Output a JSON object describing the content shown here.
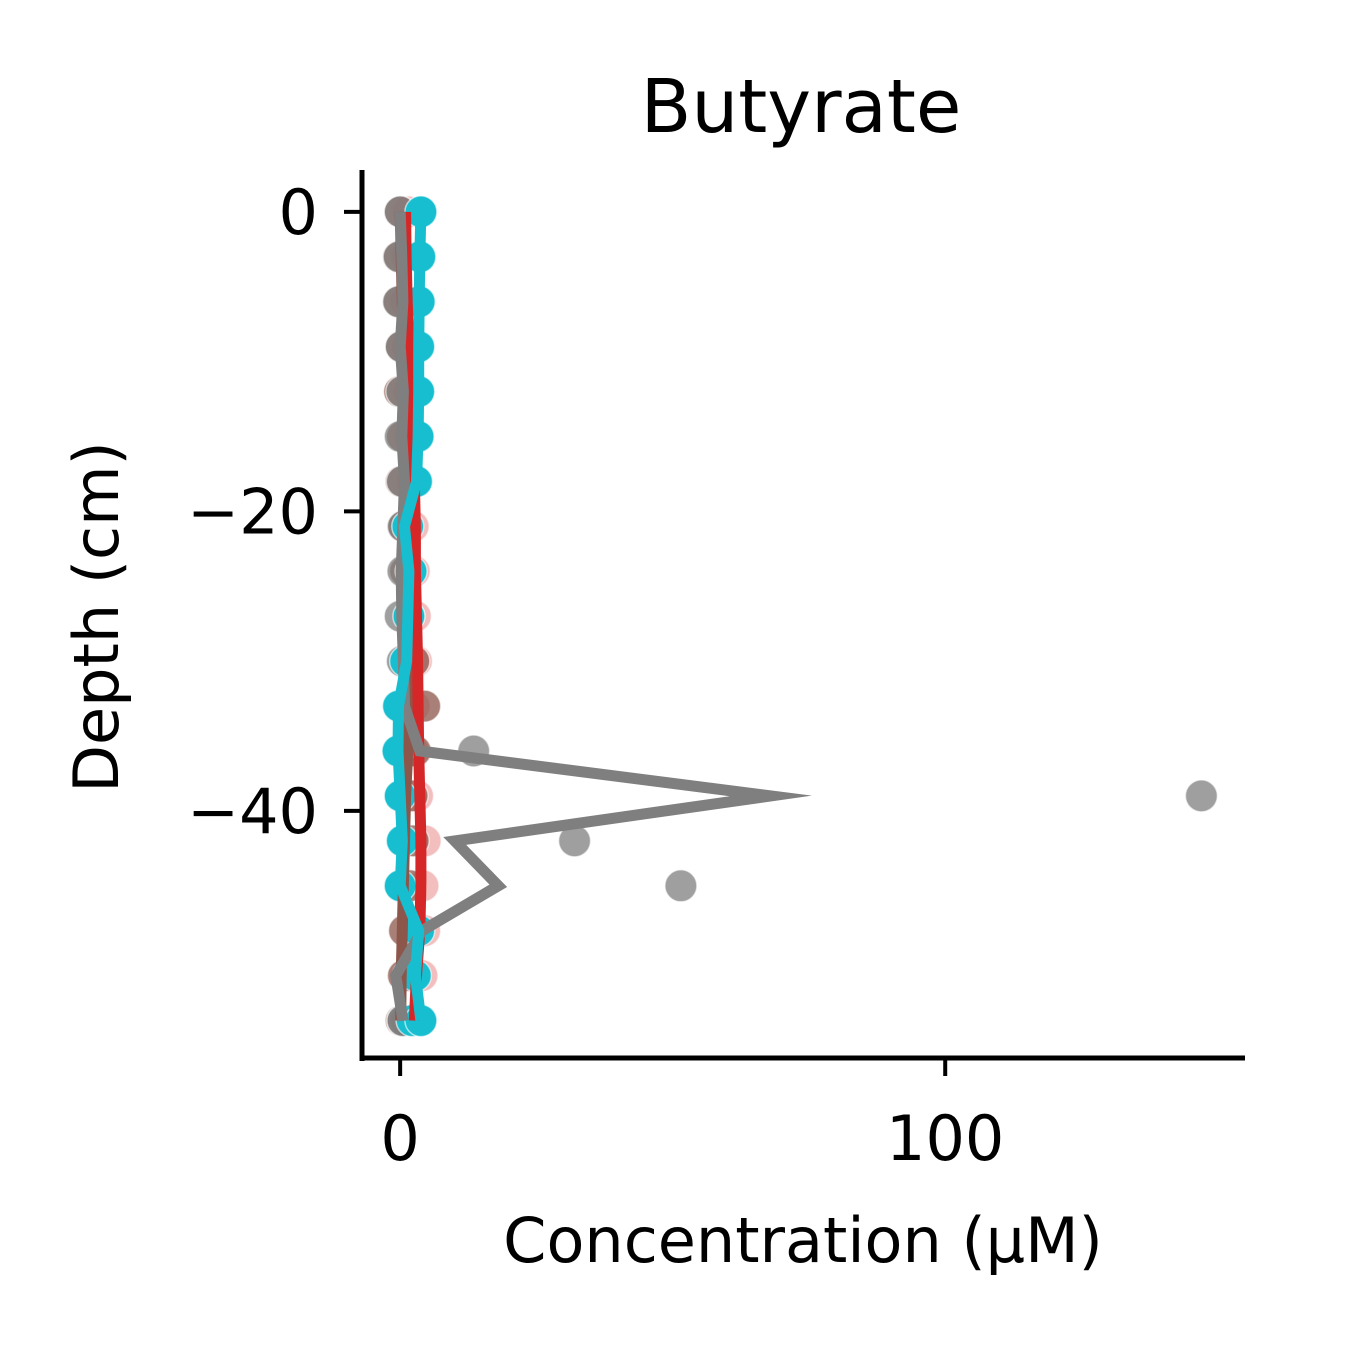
{
  "chart_data": {
    "type": "scatter",
    "title": "Butyrate",
    "xlabel": "Concentration (μM)",
    "ylabel": "Depth (cm)",
    "xlim": [
      -7,
      155
    ],
    "ylim": [
      -56.5,
      2.8
    ],
    "xticks": [
      0,
      100
    ],
    "xtick_labels": [
      "0",
      "100"
    ],
    "yticks": [
      0,
      -20,
      -40
    ],
    "ytick_labels": [
      "0",
      "−20",
      "−40"
    ],
    "grid": false,
    "legend": "none",
    "series": [
      {
        "color": "#d62728",
        "point_opacity": 0.3,
        "x": [
          1.5,
          1.2,
          1.0,
          1.3,
          1.6,
          1.8,
          2.2,
          2.4,
          2.6,
          2.8,
          3.0,
          2.6,
          2.4,
          3.2,
          4.6,
          4.2,
          4.5,
          4.0,
          3.0,
          2.8
        ],
        "y": [
          0,
          -3,
          -6,
          -9,
          -12,
          -15,
          -18,
          -21,
          -24,
          -27,
          -30,
          -33,
          -36,
          -39,
          -42,
          -45,
          -48,
          -51,
          -54,
          -54
        ]
      },
      {
        "color": "#8c564b",
        "point_opacity": 0.75,
        "x": [
          0.0,
          -0.3,
          -0.2,
          0.2,
          -0.1,
          0.4,
          0.2,
          0.5,
          1.0,
          1.6,
          2.5,
          4.5,
          2.8,
          2.2,
          2.4,
          1.8,
          0.8,
          0.6,
          0.2,
          1.0
        ],
        "y": [
          0,
          -3,
          -6,
          -9,
          -12,
          -15,
          -18,
          -21,
          -24,
          -27,
          -30,
          -33,
          -36,
          -39,
          -42,
          -45,
          -48,
          -51,
          -54,
          -54
        ]
      },
      {
        "color": "#7f7f7f",
        "point_opacity": 0.75,
        "x": [
          0.0,
          -0.2,
          -0.3,
          0.2,
          0.3,
          0.0,
          0.4,
          0.6,
          0.5,
          0.0,
          0.4,
          1.0,
          13.5,
          147.0,
          32.0,
          51.5,
          3.0,
          1.5,
          0.5,
          0.5
        ],
        "y": [
          0,
          -3,
          -6,
          -9,
          -12,
          -15,
          -18,
          -21,
          -24,
          -27,
          -30,
          -33,
          -36,
          -39,
          -42,
          -45,
          -48,
          -51,
          -54,
          -54
        ]
      },
      {
        "color": "#17becf",
        "point_opacity": 1.0,
        "x": [
          3.8,
          3.6,
          3.5,
          3.4,
          3.4,
          3.3,
          3.0,
          1.4,
          2.0,
          1.6,
          1.0,
          -0.3,
          -0.4,
          0.0,
          0.4,
          0.0,
          3.4,
          2.8,
          2.2,
          3.8
        ],
        "y": [
          0,
          -3,
          -6,
          -9,
          -12,
          -15,
          -18,
          -21,
          -24,
          -27,
          -30,
          -33,
          -36,
          -39,
          -42,
          -45,
          -48,
          -51,
          -54,
          -54
        ]
      }
    ],
    "lines": [
      {
        "color": "#8c564b",
        "x": [
          0.0,
          0.2,
          0.4,
          0.6,
          0.8,
          1.0,
          1.4,
          1.8,
          2.2,
          2.2,
          1.8,
          1.6,
          1.4,
          1.0,
          0.8,
          0.6,
          0.4,
          0.2,
          0.1
        ],
        "y": [
          0,
          -3,
          -6,
          -9,
          -12,
          -15,
          -18,
          -21,
          -24,
          -27,
          -30,
          -33,
          -36,
          -39,
          -42,
          -45,
          -48,
          -51,
          -54
        ]
      },
      {
        "color": "#d62728",
        "x": [
          1.0,
          1.1,
          1.3,
          1.6,
          2.0,
          2.2,
          2.6,
          2.8,
          2.8,
          3.0,
          3.2,
          3.3,
          3.4,
          3.6,
          3.8,
          3.8,
          3.6,
          3.0,
          2.6
        ],
        "y": [
          0,
          -3,
          -6,
          -9,
          -12,
          -15,
          -18,
          -21,
          -24,
          -27,
          -30,
          -33,
          -36,
          -39,
          -42,
          -45,
          -48,
          -51,
          -54
        ]
      },
      {
        "color": "#7f7f7f",
        "x": [
          0.0,
          0.3,
          0.5,
          0.0,
          0.6,
          0.3,
          0.8,
          0.5,
          0.2,
          0.3,
          0.6,
          0.8,
          3.6,
          68.0,
          10.0,
          18.0,
          4.0,
          -0.8,
          0.5
        ],
        "y": [
          0,
          -3,
          -6,
          -9,
          -12,
          -15,
          -18,
          -21,
          -24,
          -27,
          -30,
          -33,
          -36,
          -39,
          -42,
          -45,
          -48,
          -51,
          -54
        ]
      },
      {
        "color": "#17becf",
        "x": [
          3.8,
          3.6,
          3.5,
          3.4,
          3.4,
          3.3,
          3.0,
          0.8,
          1.6,
          1.4,
          1.2,
          -0.3,
          -0.4,
          0.0,
          0.4,
          0.0,
          3.4,
          2.8,
          3.8
        ],
        "y": [
          0,
          -3,
          -6,
          -9,
          -12,
          -15,
          -18,
          -21,
          -24,
          -27,
          -30,
          -33,
          -36,
          -39,
          -42,
          -45,
          -48,
          -51,
          -54
        ]
      }
    ]
  }
}
